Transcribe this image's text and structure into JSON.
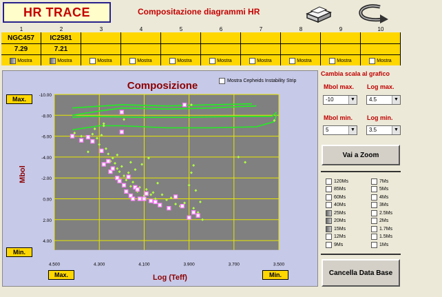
{
  "header": {
    "title": "HR TRACE",
    "subtitle": "Compositazione diagrammi HR",
    "print_icon": "printer-icon",
    "exit_icon": "return-arrow-icon"
  },
  "columns": [
    {
      "num": "1",
      "name": "NGC457",
      "value": "7.29",
      "check_label": "Mostra",
      "checked": true
    },
    {
      "num": "2",
      "name": "IC2581",
      "value": "7.21",
      "check_label": "Mostra",
      "checked": true
    },
    {
      "num": "3",
      "name": "",
      "value": "",
      "check_label": "Mostra",
      "checked": false
    },
    {
      "num": "4",
      "name": "",
      "value": "",
      "check_label": "Mostra",
      "checked": false
    },
    {
      "num": "5",
      "name": "",
      "value": "",
      "check_label": "Mostra",
      "checked": false
    },
    {
      "num": "6",
      "name": "",
      "value": "",
      "check_label": "Mostra",
      "checked": false
    },
    {
      "num": "7",
      "name": "",
      "value": "",
      "check_label": "Mostra",
      "checked": false
    },
    {
      "num": "8",
      "name": "",
      "value": "",
      "check_label": "Mostra",
      "checked": false
    },
    {
      "num": "9",
      "name": "",
      "value": "",
      "check_label": "Mostra",
      "checked": false
    },
    {
      "num": "10",
      "name": "",
      "value": "",
      "check_label": "Mostra",
      "checked": false
    }
  ],
  "plot": {
    "title": "Composizione",
    "cepheids_label": "Mostra Cepheids Instability Strip",
    "ymax_button": "Max.",
    "ymin_button": "Min.",
    "xmax_button": "Max.",
    "xmin_button": "Min."
  },
  "right_panel": {
    "scale_title": "Cambia scala al grafico",
    "mbol_max_label": "Mbol max.",
    "mbol_max_value": "-10",
    "log_max_label": "Log max.",
    "log_max_value": "4.5",
    "mbol_min_label": "Mbol min.",
    "mbol_min_value": "5",
    "log_min_label": "Log min.",
    "log_min_value": "3.5",
    "zoom_button": "Vai a Zoom",
    "clear_button": "Cancella Data Base"
  },
  "mass_tracks": [
    {
      "label": "120Ms",
      "style": "empty"
    },
    {
      "label": "7Ms",
      "style": "empty"
    },
    {
      "label": "85Ms",
      "style": "empty"
    },
    {
      "label": "5Ms",
      "style": "empty"
    },
    {
      "label": "60Ms",
      "style": "empty"
    },
    {
      "label": "4Ms",
      "style": "empty"
    },
    {
      "label": "40Ms",
      "style": "empty"
    },
    {
      "label": "3Ms",
      "style": "empty"
    },
    {
      "label": "25Ms",
      "style": "gray"
    },
    {
      "label": "2.5Ms",
      "style": "empty"
    },
    {
      "label": "20Ms",
      "style": "gray"
    },
    {
      "label": "2Ms",
      "style": "empty"
    },
    {
      "label": "15Ms",
      "style": "gray"
    },
    {
      "label": "1.7Ms",
      "style": "empty"
    },
    {
      "label": "12Ms",
      "style": "empty"
    },
    {
      "label": "1.5Ms",
      "style": "empty"
    },
    {
      "label": "9Ms",
      "style": "empty"
    },
    {
      "label": "1Ms",
      "style": "empty"
    }
  ],
  "chart_data": {
    "type": "scatter",
    "title": "Composizione",
    "xlabel": "Log (Teff)",
    "ylabel": "Mbol",
    "xlim": [
      4.5,
      3.5
    ],
    "ylim": [
      -10,
      5
    ],
    "x_ticks": [
      "4.500",
      "4.300",
      "4.100",
      "3.900",
      "3.700",
      "3.500"
    ],
    "y_ticks": [
      "-10.00",
      "-8.00",
      "-6.00",
      "-4.00",
      "-2.00",
      "0.00",
      "2.00",
      "4.00"
    ],
    "grid": true,
    "colors": {
      "plot_bg": "#808080",
      "grid": "#e8e800",
      "track": "#22ee22",
      "series_a": "#b0ff40",
      "series_b": "#ff80ff",
      "label": "#8b0000"
    },
    "series": [
      {
        "name": "NGC457",
        "marker": "diamond",
        "color": "#b0ff40",
        "points": [
          [
            4.33,
            -6.2
          ],
          [
            4.32,
            -6.7
          ],
          [
            4.31,
            -5.8
          ],
          [
            4.3,
            -5.2
          ],
          [
            4.29,
            -6.1
          ],
          [
            4.28,
            -7.0
          ],
          [
            4.27,
            -4.8
          ],
          [
            4.26,
            -4.3
          ],
          [
            4.25,
            -3.6
          ],
          [
            4.24,
            -3.9
          ],
          [
            4.23,
            -3.4
          ],
          [
            4.22,
            -2.9
          ],
          [
            4.21,
            -2.6
          ],
          [
            4.2,
            -3.1
          ],
          [
            4.19,
            -2.2
          ],
          [
            4.18,
            -1.8
          ],
          [
            4.17,
            -2.5
          ],
          [
            4.16,
            -1.2
          ],
          [
            4.15,
            -1.6
          ],
          [
            4.14,
            -2.8
          ],
          [
            4.13,
            -0.7
          ],
          [
            4.12,
            -1.1
          ],
          [
            4.11,
            -3.3
          ],
          [
            4.1,
            -0.3
          ],
          [
            4.09,
            -0.9
          ],
          [
            4.08,
            -3.9
          ],
          [
            4.07,
            -0.4
          ],
          [
            4.06,
            -0.6
          ],
          [
            4.05,
            0.0
          ],
          [
            4.04,
            -1.5
          ],
          [
            4.02,
            -0.4
          ],
          [
            4.0,
            0.1
          ],
          [
            3.98,
            -0.1
          ],
          [
            3.96,
            0.5
          ],
          [
            3.94,
            0.7
          ],
          [
            3.92,
            0.4
          ],
          [
            3.9,
            -1.3
          ],
          [
            3.89,
            -2.5
          ],
          [
            3.88,
            0.9
          ],
          [
            3.87,
            -0.8
          ],
          [
            3.86,
            1.3
          ],
          [
            3.85,
            0.3
          ],
          [
            3.84,
            2.0
          ],
          [
            3.88,
            -3.2
          ],
          [
            3.89,
            -9.0
          ],
          [
            3.68,
            -4.0
          ],
          [
            3.65,
            -3.5
          ],
          [
            3.52,
            -7.5
          ],
          [
            4.38,
            -6.0
          ],
          [
            4.41,
            -6.3
          ],
          [
            4.35,
            -4.5
          ],
          [
            4.19,
            -7.6
          ],
          [
            4.28,
            -7.2
          ],
          [
            4.22,
            -4.2
          ],
          [
            4.16,
            -3.5
          ]
        ]
      },
      {
        "name": "IC2581",
        "marker": "square",
        "color": "#ff80ff",
        "points": [
          [
            4.42,
            -6.0
          ],
          [
            4.38,
            -5.6
          ],
          [
            4.35,
            -5.9
          ],
          [
            4.33,
            -5.5
          ],
          [
            4.29,
            -4.6
          ],
          [
            4.28,
            -3.3
          ],
          [
            4.26,
            -3.6
          ],
          [
            4.25,
            -2.6
          ],
          [
            4.24,
            -2.9
          ],
          [
            4.22,
            -2.0
          ],
          [
            4.21,
            -1.7
          ],
          [
            4.2,
            -6.4
          ],
          [
            4.19,
            -1.3
          ],
          [
            4.18,
            -0.7
          ],
          [
            4.17,
            -2.1
          ],
          [
            4.16,
            -0.3
          ],
          [
            4.15,
            0.0
          ],
          [
            4.14,
            -1.1
          ],
          [
            4.13,
            -0.9
          ],
          [
            4.12,
            0.0
          ],
          [
            4.1,
            0.0
          ],
          [
            4.09,
            -0.5
          ],
          [
            4.07,
            0.2
          ],
          [
            4.05,
            0.3
          ],
          [
            4.03,
            0.6
          ],
          [
            3.99,
            0.9
          ],
          [
            3.96,
            -0.2
          ],
          [
            3.93,
            0.7
          ],
          [
            3.9,
            1.8
          ],
          [
            3.88,
            1.3
          ],
          [
            3.86,
            1.6
          ],
          [
            3.92,
            -9.0
          ],
          [
            4.2,
            -8.3
          ]
        ]
      }
    ],
    "tracks": [
      {
        "points": [
          [
            4.42,
            -8.0
          ],
          [
            4.3,
            -8.4
          ],
          [
            4.2,
            -8.7
          ],
          [
            4.0,
            -8.6
          ],
          [
            3.8,
            -8.7
          ],
          [
            3.6,
            -8.9
          ]
        ]
      },
      {
        "points": [
          [
            4.42,
            -8.7
          ],
          [
            4.35,
            -8.8
          ],
          [
            4.2,
            -9.0
          ],
          [
            4.0,
            -8.9
          ],
          [
            3.8,
            -9.0
          ],
          [
            3.62,
            -9.1
          ]
        ]
      },
      {
        "points": [
          [
            4.42,
            -7.8
          ],
          [
            4.35,
            -7.9
          ],
          [
            4.1,
            -7.8
          ],
          [
            3.9,
            -7.8
          ],
          [
            3.7,
            -7.9
          ],
          [
            3.53,
            -7.9
          ],
          [
            3.51,
            -8.3
          ]
        ]
      },
      {
        "points": [
          [
            4.42,
            -6.6
          ],
          [
            4.3,
            -7.0
          ],
          [
            4.2,
            -7.0
          ],
          [
            4.0,
            -6.8
          ],
          [
            3.8,
            -6.8
          ],
          [
            3.6,
            -6.9
          ],
          [
            3.52,
            -7.4
          ],
          [
            3.51,
            -8.1
          ]
        ]
      }
    ]
  }
}
